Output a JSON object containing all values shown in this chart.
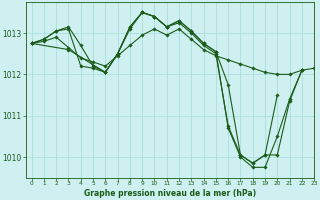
{
  "title": "Graphe pression niveau de la mer (hPa)",
  "background_color": "#cff0f0",
  "grid_color": "#aadddd",
  "line_color": "#1a5c1a",
  "xlim": [
    -0.5,
    23
  ],
  "ylim": [
    1009.5,
    1013.75
  ],
  "yticks": [
    1010,
    1011,
    1012,
    1013
  ],
  "xticks": [
    0,
    1,
    2,
    3,
    4,
    5,
    6,
    7,
    8,
    9,
    10,
    11,
    12,
    13,
    14,
    15,
    16,
    17,
    18,
    19,
    20,
    21,
    22,
    23
  ],
  "series": [
    {
      "x": [
        0,
        1,
        2,
        3,
        4,
        5,
        6,
        7,
        8,
        9,
        10,
        11,
        12,
        13,
        14,
        15,
        16,
        17,
        18,
        19,
        20,
        21,
        22
      ],
      "y": [
        1012.75,
        1012.85,
        1013.05,
        1013.15,
        1012.7,
        1012.2,
        1012.05,
        1012.5,
        1013.1,
        1013.5,
        1013.4,
        1013.15,
        1013.3,
        1013.05,
        1012.75,
        1012.55,
        1010.7,
        1010.0,
        1009.75,
        1009.75,
        1010.5,
        1011.4,
        1012.1
      ]
    },
    {
      "x": [
        0,
        1,
        2,
        3,
        4,
        5,
        6,
        7,
        8,
        9,
        10,
        11,
        12,
        13,
        14,
        15,
        16,
        17,
        18,
        19,
        20
      ],
      "y": [
        1012.75,
        1012.85,
        1013.05,
        1013.1,
        1012.2,
        1012.15,
        1012.05,
        1012.5,
        1013.15,
        1013.5,
        1013.4,
        1013.15,
        1013.3,
        1013.05,
        1012.75,
        1012.55,
        1011.75,
        1010.05,
        1009.85,
        1010.05,
        1011.5
      ]
    },
    {
      "x": [
        0,
        3,
        6,
        7,
        8,
        9,
        10,
        11,
        12,
        13,
        14,
        15,
        16,
        17,
        18,
        19,
        20,
        21,
        22
      ],
      "y": [
        1012.75,
        1012.6,
        1012.05,
        1012.5,
        1013.15,
        1013.5,
        1013.4,
        1013.15,
        1013.25,
        1013.0,
        1012.7,
        1012.5,
        1010.75,
        1010.05,
        1009.85,
        1010.05,
        1010.05,
        1011.35,
        1012.1
      ]
    },
    {
      "x": [
        0,
        1,
        2,
        3,
        4,
        5,
        6,
        7,
        8,
        9,
        10,
        11,
        12,
        13,
        14,
        15,
        16,
        17,
        18,
        19,
        20,
        21,
        22,
        23
      ],
      "y": [
        1012.75,
        1012.8,
        1012.9,
        1012.65,
        1012.4,
        1012.3,
        1012.2,
        1012.45,
        1012.7,
        1012.95,
        1013.1,
        1012.95,
        1013.1,
        1012.85,
        1012.6,
        1012.45,
        1012.35,
        1012.25,
        1012.15,
        1012.05,
        1012.0,
        1012.0,
        1012.1,
        1012.15
      ]
    }
  ]
}
